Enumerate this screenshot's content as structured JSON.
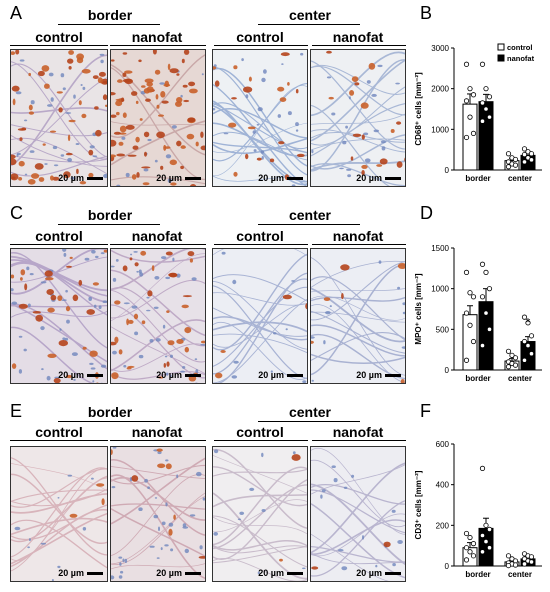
{
  "panels": {
    "A": {
      "letter": "A",
      "group_border": "border",
      "group_center": "center",
      "labels": [
        "control",
        "nanofat",
        "control",
        "nanofat"
      ],
      "scale": "20 µm"
    },
    "C": {
      "letter": "C",
      "group_border": "border",
      "group_center": "center",
      "labels": [
        "control",
        "nanofat",
        "control",
        "nanofat"
      ],
      "scale": "20 µm"
    },
    "E": {
      "letter": "E",
      "group_border": "border",
      "group_center": "center",
      "labels": [
        "control",
        "nanofat",
        "control",
        "nanofat"
      ],
      "scale": "20 µm"
    },
    "B": {
      "letter": "B"
    },
    "D": {
      "letter": "D"
    },
    "F": {
      "letter": "F"
    }
  },
  "colors": {
    "control_fill": "#ffffff",
    "nanofat_fill": "#000000",
    "stain_brown": "#b5441c",
    "stain_blue": "#8fa6cc"
  },
  "chart_data": [
    {
      "type": "bar",
      "panel": "B",
      "ylabel": "CD68⁺ cells [mm⁻²]",
      "ylim": [
        0,
        3000
      ],
      "yticks": [
        0,
        1000,
        2000,
        3000
      ],
      "categories": [
        "border",
        "center"
      ],
      "legend": [
        "control",
        "nanofat"
      ],
      "series": [
        {
          "name": "control",
          "values": [
            1620,
            230
          ],
          "err": [
            250,
            60
          ],
          "points": [
            [
              2600,
              2000,
              1850,
              1700,
              1300,
              900,
              800
            ],
            [
              400,
              300,
              260,
              200,
              150,
              120,
              80
            ]
          ]
        },
        {
          "name": "nanofat",
          "values": [
            1680,
            360
          ],
          "err": [
            180,
            60
          ],
          "points": [
            [
              2600,
              2000,
              1800,
              1650,
              1500,
              1300,
              1200
            ],
            [
              520,
              450,
              400,
              380,
              300,
              250,
              200
            ]
          ]
        }
      ]
    },
    {
      "type": "bar",
      "panel": "D",
      "ylabel": "MPO⁺ cells [mm⁻²]",
      "ylim": [
        0,
        1500
      ],
      "yticks": [
        0,
        500,
        1000,
        1500
      ],
      "categories": [
        "border",
        "center"
      ],
      "annotation": "*",
      "series": [
        {
          "name": "control",
          "values": [
            680,
            110
          ],
          "err": [
            110,
            30
          ],
          "points": [
            [
              1200,
              950,
              900,
              700,
              550,
              350,
              120
            ],
            [
              230,
              180,
              150,
              100,
              80,
              60,
              40
            ]
          ]
        },
        {
          "name": "nanofat",
          "values": [
            840,
            350
          ],
          "err": [
            160,
            60
          ],
          "points": [
            [
              1300,
              1200,
              1000,
              900,
              700,
              500,
              300
            ],
            [
              650,
              580,
              420,
              350,
              300,
              200,
              120
            ]
          ]
        }
      ]
    },
    {
      "type": "bar",
      "panel": "F",
      "ylabel": "CD3⁺ cells [mm⁻²]",
      "ylim": [
        0,
        600
      ],
      "yticks": [
        0,
        200,
        400,
        600
      ],
      "categories": [
        "border",
        "center"
      ],
      "series": [
        {
          "name": "control",
          "values": [
            90,
            20
          ],
          "err": [
            25,
            8
          ],
          "points": [
            [
              160,
              140,
              110,
              90,
              70,
              50,
              30
            ],
            [
              50,
              35,
              25,
              15,
              10,
              5,
              2
            ]
          ]
        },
        {
          "name": "nanofat",
          "values": [
            185,
            35
          ],
          "err": [
            50,
            10
          ],
          "points": [
            [
              480,
              200,
              180,
              150,
              120,
              90,
              70
            ],
            [
              60,
              50,
              45,
              35,
              25,
              20,
              10
            ]
          ]
        }
      ]
    }
  ]
}
